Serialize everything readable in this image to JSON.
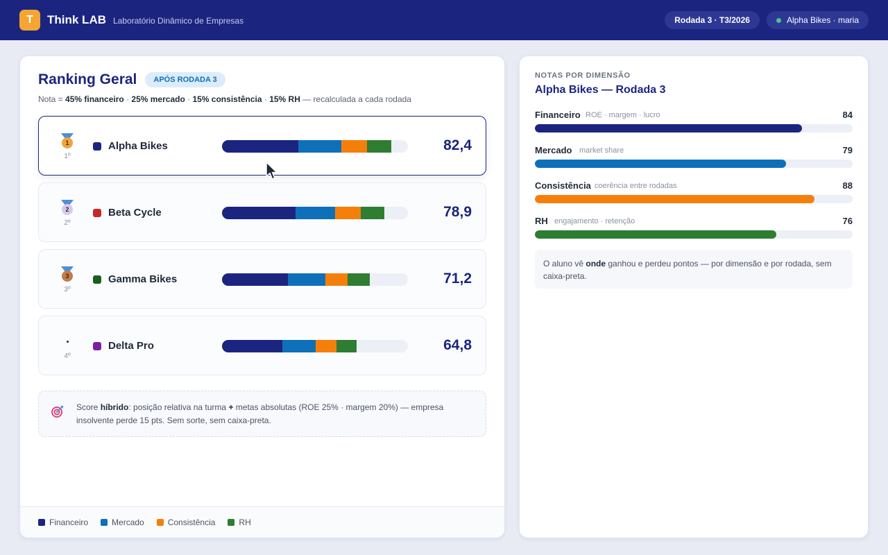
{
  "app": {
    "logo_letter": "T",
    "name": "Think LAB",
    "tagline": "Laboratório Dinâmico de Empresas",
    "round_pill": "Rodada 3 · T3/2026",
    "user_pill": "Alpha Bikes · maria"
  },
  "ranking": {
    "title": "Ranking Geral",
    "badge": "APÓS RODADA 3",
    "formula": {
      "prefix": "Nota = ",
      "fin": "45% financeiro",
      "sep1": " · ",
      "mkt": "25% mercado",
      "sep2": " · ",
      "cons": "15% consistência",
      "sep3": " · ",
      "rh": "15% RH",
      "suffix": " — recalculada a cada rodada"
    },
    "teams": [
      {
        "position": "1º",
        "medal": "1",
        "name": "Alpha Bikes",
        "color": "#1b2580",
        "score": "82,4",
        "segments": [
          41,
          23,
          14,
          13
        ]
      },
      {
        "position": "2º",
        "medal": "2",
        "name": "Beta Cycle",
        "color": "#c62828",
        "score": "78,9",
        "segments": [
          39.5,
          21.5,
          13.5,
          13
        ]
      },
      {
        "position": "3º",
        "medal": "3",
        "name": "Gamma Bikes",
        "color": "#1b5e20",
        "score": "71,2",
        "segments": [
          35.5,
          20,
          12,
          12
        ]
      },
      {
        "position": "4º",
        "medal": "",
        "name": "Delta Pro",
        "color": "#7b1fa2",
        "score": "64,8",
        "segments": [
          32.5,
          18,
          11,
          11
        ]
      }
    ],
    "note": {
      "p1": "Score ",
      "bold": "híbrido",
      "p2": ": posição relativa na turma ",
      "plus": "+",
      "p3": " metas absolutas (ROE 25% · margem 20%) — empresa insolvente perde 15 pts. Sem sorte, sem caixa-preta."
    },
    "legend": [
      {
        "label": "Financeiro",
        "color": "#1b2580"
      },
      {
        "label": "Mercado",
        "color": "#0e70b8"
      },
      {
        "label": "Consistência",
        "color": "#f57f0b"
      },
      {
        "label": "RH",
        "color": "#2e7d32"
      }
    ]
  },
  "dimensions": {
    "label": "NOTAS POR DIMENSÃO",
    "title": "Alpha Bikes — Rodada 3",
    "items": [
      {
        "name": "Financeiro",
        "desc": "ROE · margem · lucro",
        "value": "84",
        "fill": 84,
        "color": "#1b2580"
      },
      {
        "name": "Mercado",
        "desc": "market share",
        "value": "79",
        "fill": 79,
        "color": "#0e70b8"
      },
      {
        "name": "Consistência",
        "desc": "coerência entre rodadas",
        "value": "88",
        "fill": 88,
        "color": "#f57f0b"
      },
      {
        "name": "RH",
        "desc": "engajamento · retenção",
        "value": "76",
        "fill": 76,
        "color": "#2e7d32"
      }
    ],
    "note": {
      "p1": "O aluno vê ",
      "bold": "onde",
      "p2": " ganhou e perdeu pontos — por dimensão e por rodada, sem caixa-preta."
    }
  }
}
